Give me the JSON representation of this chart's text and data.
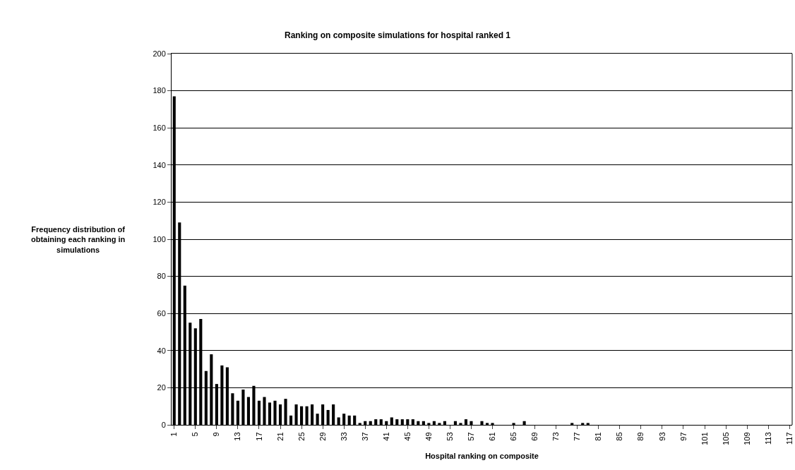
{
  "chart_data": {
    "type": "bar",
    "title": "Ranking on composite simulations for hospital ranked 1",
    "xlabel": "Hospital ranking on composite",
    "ylabel": "Frequency distribution of\nobtaining each ranking in\nsimulations",
    "categories": [
      "1",
      null,
      null,
      null,
      "5",
      null,
      null,
      null,
      "9",
      null,
      null,
      null,
      "13",
      null,
      null,
      null,
      "17",
      null,
      null,
      null,
      "21",
      null,
      null,
      null,
      "25",
      null,
      null,
      null,
      "29",
      null,
      null,
      null,
      "33",
      null,
      null,
      null,
      "37",
      null,
      null,
      null,
      "41",
      null,
      null,
      null,
      "45",
      null,
      null,
      null,
      "49",
      null,
      null,
      null,
      "53",
      null,
      null,
      null,
      "57",
      null,
      null,
      null,
      "61",
      null,
      null,
      null,
      "65",
      null,
      null,
      null,
      "69",
      null,
      null,
      null,
      "73",
      null,
      null,
      null,
      "77",
      null,
      null,
      null,
      "81",
      null,
      null,
      null,
      "85",
      null,
      null,
      null,
      "89",
      null,
      null,
      null,
      "93",
      null,
      null,
      null,
      "97",
      null,
      null,
      null,
      "101",
      null,
      null,
      null,
      "105",
      null,
      null,
      null,
      "109",
      null,
      null,
      null,
      "113",
      null,
      null,
      null,
      "117"
    ],
    "values": [
      177,
      109,
      75,
      55,
      52,
      57,
      29,
      38,
      22,
      32,
      31,
      17,
      13,
      19,
      15,
      21,
      13,
      15,
      12,
      13,
      11,
      14,
      5,
      11,
      10,
      10,
      11,
      6,
      11,
      8,
      11,
      4,
      6,
      5,
      5,
      1,
      2,
      2,
      3,
      3,
      2,
      4,
      3,
      3,
      3,
      3,
      2,
      2,
      1,
      2,
      1,
      2,
      0,
      2,
      1,
      3,
      2,
      0,
      2,
      1,
      1,
      0,
      0,
      0,
      1,
      0,
      2,
      0,
      0,
      0,
      0,
      0,
      0,
      0,
      0,
      1,
      0,
      1,
      1,
      0,
      0,
      0,
      0,
      0,
      0,
      0,
      0,
      0,
      0,
      0,
      0,
      0,
      0,
      0,
      0,
      0,
      0,
      0,
      0,
      0,
      0,
      0,
      0,
      0,
      0,
      0,
      0,
      0,
      0,
      0,
      0,
      0,
      0,
      0,
      0,
      0,
      0
    ],
    "color": "#000000",
    "ylim": [
      0,
      200
    ],
    "yticks": [
      0,
      20,
      40,
      60,
      80,
      100,
      120,
      140,
      160,
      180,
      200
    ],
    "grid": "y",
    "legend": false
  }
}
